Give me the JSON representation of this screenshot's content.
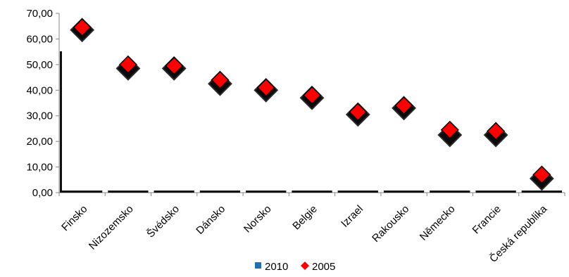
{
  "chart_data": {
    "type": "scatter",
    "title": "",
    "xlabel": "",
    "ylabel": "",
    "ylim": [
      0,
      70
    ],
    "yticks": [
      "0,00",
      "10,00",
      "20,00",
      "30,00",
      "40,00",
      "50,00",
      "60,00",
      "70,00"
    ],
    "ytick_values": [
      0,
      10,
      20,
      30,
      40,
      50,
      60,
      70
    ],
    "categories": [
      "Finsko",
      "Nizozemsko",
      "Švédsko",
      "Dánsko",
      "Norsko",
      "Belgie",
      "Izrael",
      "Rakousko",
      "Německo",
      "Francie",
      "Česká republika"
    ],
    "grid": false,
    "legend_position": "bottom",
    "series": [
      {
        "name": "2010",
        "marker": "bar",
        "color": "#1F6FB5",
        "values": [
          63.5,
          48.5,
          48.5,
          42.5,
          40,
          37,
          30.5,
          33,
          22.5,
          22.5,
          5.5
        ]
      },
      {
        "name": "2005",
        "marker": "diamond",
        "color": "#FF0000",
        "values": [
          64.5,
          50,
          49.5,
          44,
          41,
          38,
          31.5,
          34,
          24.5,
          24,
          7
        ]
      }
    ]
  }
}
